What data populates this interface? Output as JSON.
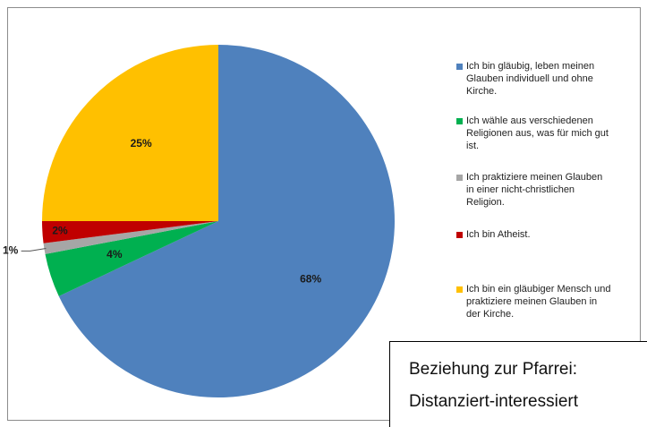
{
  "chart_data": {
    "type": "pie",
    "slices": [
      {
        "label": "Ich bin gläubig, leben meinen Glauben individuell und ohne Kirche.",
        "value": 68,
        "value_label": "68%",
        "color": "#4F81BD"
      },
      {
        "label": "Ich wähle aus verschiedenen Religionen aus, was für mich gut ist.",
        "value": 4,
        "value_label": "4%",
        "color": "#00B050"
      },
      {
        "label": "Ich praktiziere meinen Glauben in einer nicht-christlichen Religion.",
        "value": 1,
        "value_label": "1%",
        "color": "#A6A6A6"
      },
      {
        "label": "Ich bin Atheist.",
        "value": 2,
        "value_label": "2%",
        "color": "#C00000"
      },
      {
        "label": "Ich bin ein gläubiger Mensch und praktiziere meinen Glauben in der Kirche.",
        "value": 25,
        "value_label": "25%",
        "color": "#FFC000"
      }
    ],
    "legend_position": "right"
  },
  "legend": [
    {
      "text": "Ich bin gläubig, leben meinen\nGlauben individuell und ohne\nKirche.",
      "color": "#4F81BD"
    },
    {
      "text": "Ich wähle aus verschiedenen\nReligionen aus, was für mich gut\nist.",
      "color": "#00B050"
    },
    {
      "text": "Ich praktiziere meinen Glauben\nin einer nicht-christlichen\nReligion.",
      "color": "#A6A6A6"
    },
    {
      "text": "Ich bin Atheist.",
      "color": "#C00000"
    },
    {
      "text": "Ich bin ein gläubiger Mensch und\npraktiziere meinen Glauben in\nder Kirche.",
      "color": "#FFC000"
    }
  ],
  "info_box": {
    "line1": "Beziehung zur Pfarrei:",
    "line2": "Distanziert-interessiert"
  }
}
